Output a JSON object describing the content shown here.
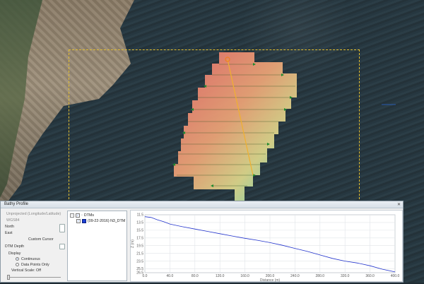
{
  "window": {
    "title": "Bathy Profile"
  },
  "left_panel": {
    "coord_system": "Unprojected (Longitude/Latitude)",
    "zone_label": "WGS84",
    "north_label": "North",
    "east_label": "East",
    "custom_cursor_label": "Custom Cursor",
    "dtm_depth_label": "DTM Depth",
    "display_label": "Display",
    "continuous_label": "Continuous",
    "data_points_label": "Data Points Only",
    "vertical_scale_label": "Vertical Scale: Off"
  },
  "tree": {
    "root_label": "DTMs",
    "child_label": "(09-22-2016) N3_DTM"
  },
  "chart_data": {
    "type": "line",
    "xlabel": "Distance (m)",
    "ylabel": "Z (m)",
    "xlim": [
      0,
      400
    ],
    "ylim": [
      11.5,
      26.5
    ],
    "x_ticks": [
      "0.0",
      "40.0",
      "80.0",
      "120.0",
      "160.0",
      "200.0",
      "240.0",
      "280.0",
      "320.0",
      "360.0",
      "400.0"
    ],
    "y_ticks": [
      "11.5",
      "13.5",
      "15.5",
      "17.5",
      "19.5",
      "21.5",
      "23.5",
      "25.5",
      "26.5"
    ],
    "series": [
      {
        "color": "#2233cc",
        "x": [
          0,
          10,
          20,
          30,
          40,
          60,
          80,
          100,
          120,
          140,
          160,
          180,
          200,
          220,
          240,
          260,
          280,
          300,
          320,
          340,
          360,
          380,
          400
        ],
        "y": [
          12.0,
          12.2,
          12.8,
          13.3,
          13.9,
          14.6,
          15.2,
          15.8,
          16.4,
          17.0,
          17.6,
          18.1,
          18.7,
          19.4,
          20.2,
          21.0,
          21.9,
          22.8,
          23.5,
          24.0,
          24.7,
          25.6,
          26.3
        ]
      }
    ]
  }
}
